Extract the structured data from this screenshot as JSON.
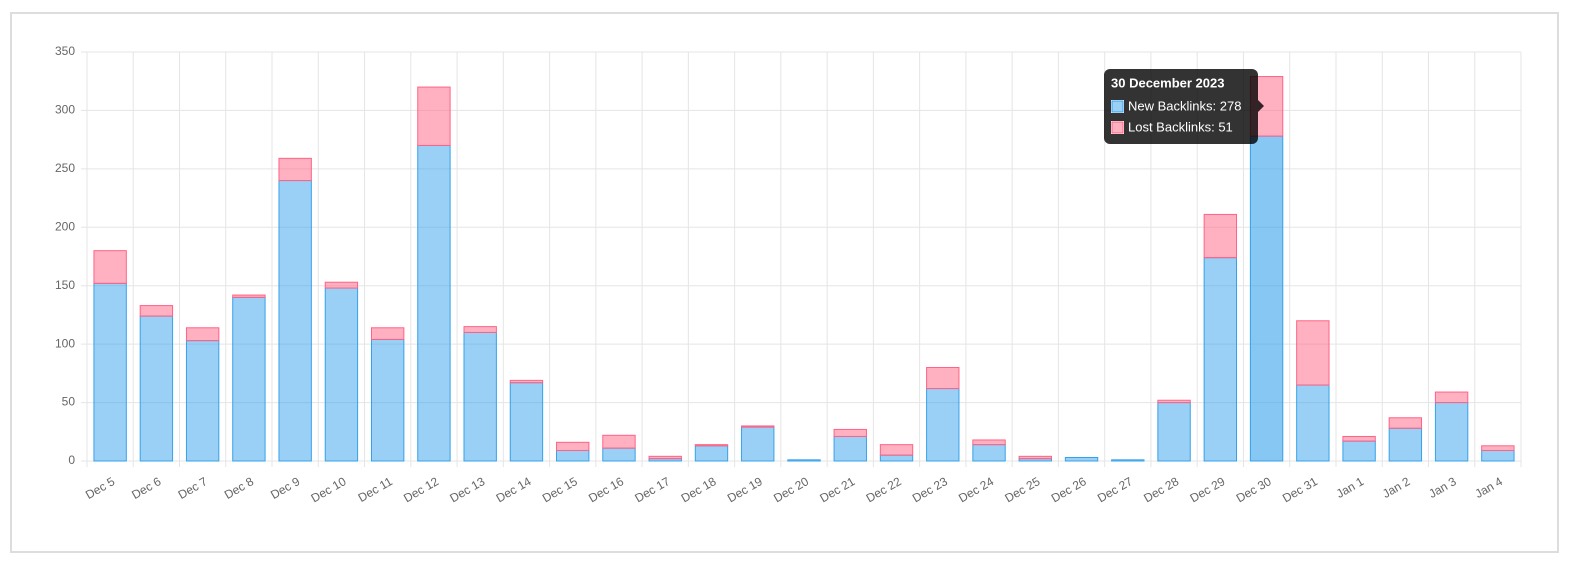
{
  "chart_data": {
    "type": "stacked_bar",
    "categories": [
      "Dec 5",
      "Dec 6",
      "Dec 7",
      "Dec 8",
      "Dec 9",
      "Dec 10",
      "Dec 11",
      "Dec 12",
      "Dec 13",
      "Dec 14",
      "Dec 15",
      "Dec 16",
      "Dec 17",
      "Dec 18",
      "Dec 19",
      "Dec 20",
      "Dec 21",
      "Dec 22",
      "Dec 23",
      "Dec 24",
      "Dec 25",
      "Dec 26",
      "Dec 27",
      "Dec 28",
      "Dec 29",
      "Dec 30",
      "Dec 31",
      "Jan 1",
      "Jan 2",
      "Jan 3",
      "Jan 4"
    ],
    "series": [
      {
        "name": "New Backlinks",
        "color": "#36a2eb",
        "values": [
          152,
          124,
          103,
          140,
          240,
          148,
          104,
          270,
          110,
          67,
          9,
          11,
          2,
          13,
          29,
          1,
          21,
          5,
          62,
          14,
          2,
          3,
          1,
          50,
          174,
          278,
          65,
          17,
          28,
          50,
          9
        ]
      },
      {
        "name": "Lost Backlinks",
        "color": "#ff6384",
        "values": [
          28,
          9,
          11,
          2,
          19,
          5,
          10,
          50,
          5,
          2,
          7,
          11,
          2,
          1,
          1,
          0,
          6,
          9,
          18,
          4,
          2,
          0,
          0,
          2,
          37,
          51,
          55,
          4,
          9,
          9,
          4
        ]
      }
    ],
    "ylim": [
      0,
      350
    ],
    "yticks": [
      0,
      50,
      100,
      150,
      200,
      250,
      300,
      350
    ],
    "grid": true,
    "tooltip": {
      "title": "30 December 2023",
      "lines": [
        "New Backlinks: 278",
        "Lost Backlinks: 51"
      ]
    }
  }
}
